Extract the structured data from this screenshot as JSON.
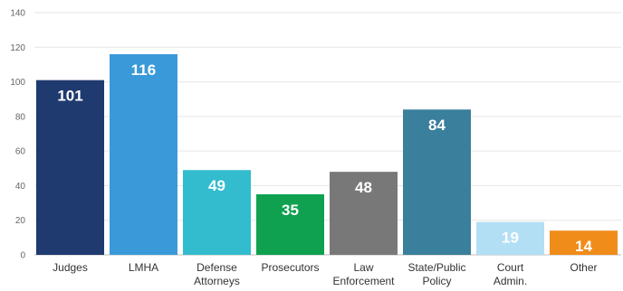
{
  "chart_data": {
    "type": "bar",
    "title": "",
    "xlabel": "",
    "ylabel": "",
    "ylim": [
      0,
      140
    ],
    "yticks": [
      0,
      20,
      40,
      60,
      80,
      100,
      120,
      140
    ],
    "grid": true,
    "legend": "none",
    "categories": [
      [
        "Judges"
      ],
      [
        "LMHA"
      ],
      [
        "Defense",
        "Attorneys"
      ],
      [
        "Prosecutors"
      ],
      [
        "Law",
        "Enforcement"
      ],
      [
        "State/Public",
        "Policy"
      ],
      [
        "Court",
        "Admin."
      ],
      [
        "Other"
      ]
    ],
    "values": [
      101,
      116,
      49,
      35,
      48,
      84,
      19,
      14
    ],
    "colors": [
      "#1f3a6e",
      "#3a9ad9",
      "#33bccd",
      "#0fa14f",
      "#787878",
      "#3a7f9c",
      "#b3dff5",
      "#f08c1a"
    ]
  }
}
